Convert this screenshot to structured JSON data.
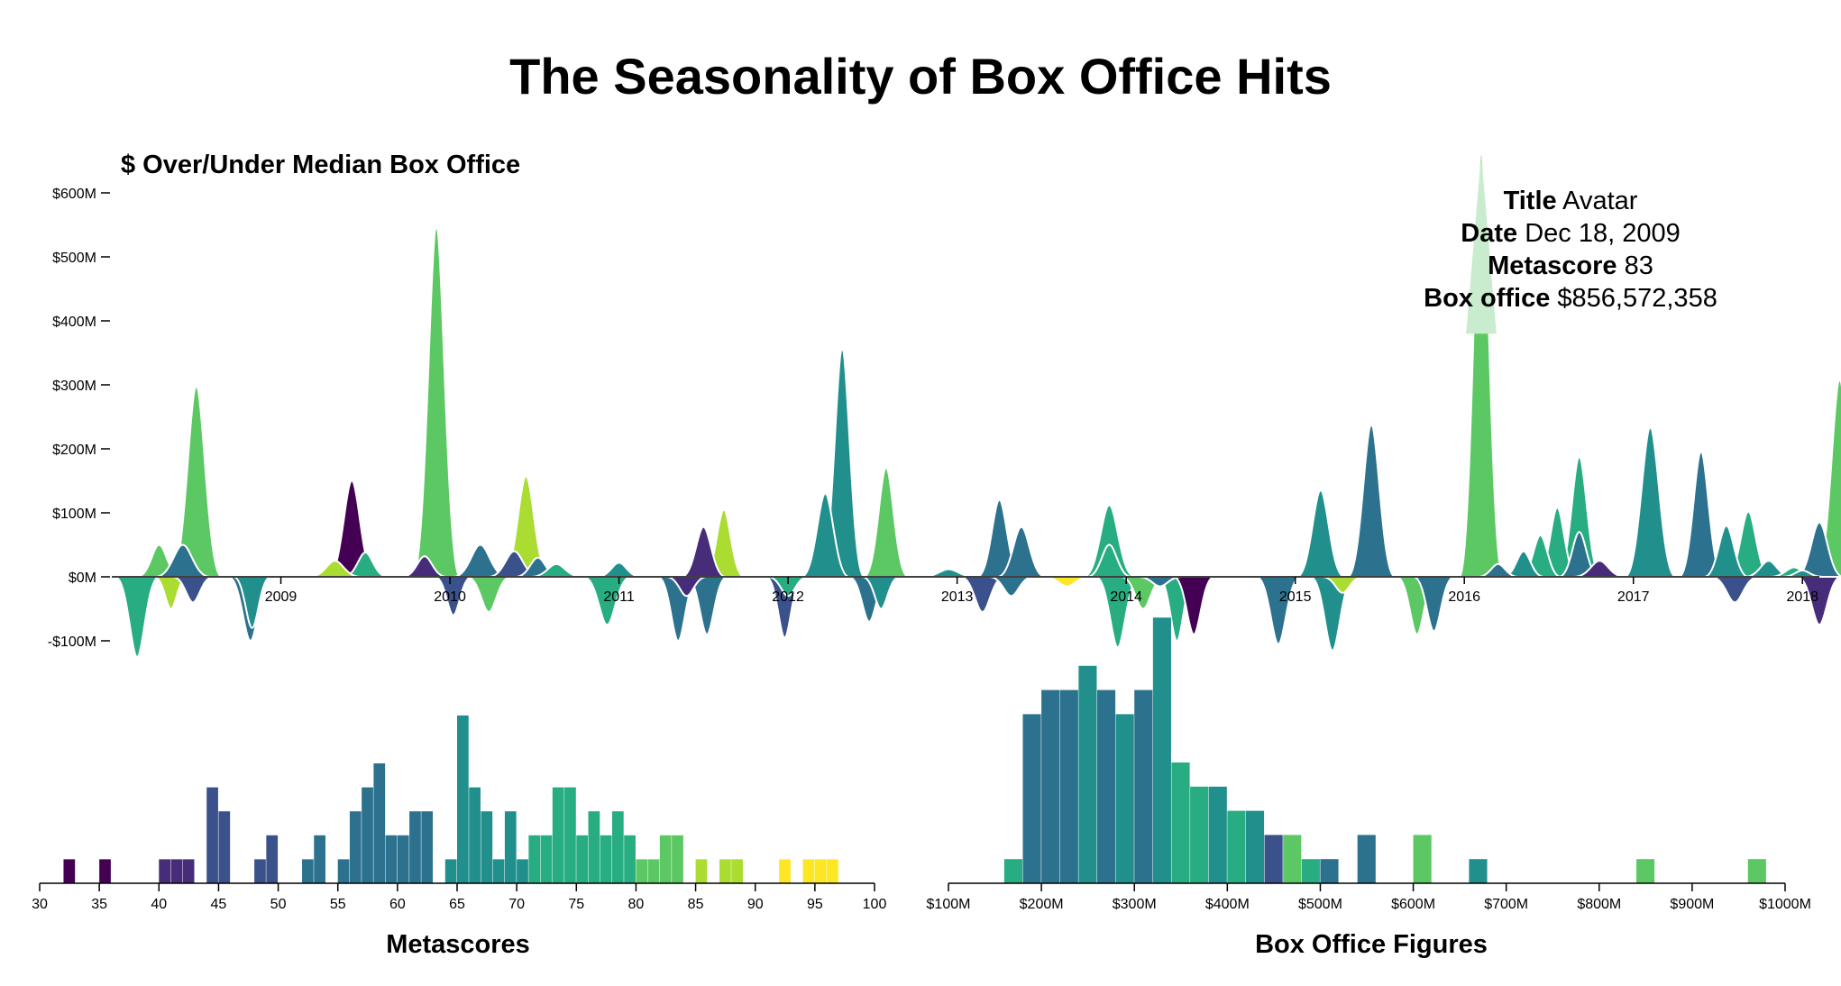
{
  "colors": {
    "palette": [
      "#440154",
      "#472c7a",
      "#3b518b",
      "#2c718e",
      "#21908d",
      "#27ad81",
      "#5cc863",
      "#aadc32",
      "#fde725"
    ],
    "tooltip_band": "#c8eccd",
    "axis": "#000000"
  },
  "chart_data": [
    {
      "type": "area",
      "title": "The Seasonality of Box Office Hits",
      "subtitle": "$ Over/Under Median Box Office",
      "ylim": [
        -100,
        600
      ],
      "y_ticks": [
        {
          "v": 600,
          "label": "$600M"
        },
        {
          "v": 500,
          "label": "$500M"
        },
        {
          "v": 400,
          "label": "$400M"
        },
        {
          "v": 300,
          "label": "$300M"
        },
        {
          "v": 200,
          "label": "$200M"
        },
        {
          "v": 100,
          "label": "$100M"
        },
        {
          "v": 0,
          "label": "$0M"
        },
        {
          "v": -100,
          "label": "-$100M"
        }
      ],
      "x_ticks": [
        {
          "v": 2009,
          "label": "2009"
        },
        {
          "v": 2010,
          "label": "2010"
        },
        {
          "v": 2011,
          "label": "2011"
        },
        {
          "v": 2012,
          "label": "2012"
        },
        {
          "v": 2013,
          "label": "2013"
        },
        {
          "v": 2014,
          "label": "2014"
        },
        {
          "v": 2015,
          "label": "2015"
        },
        {
          "v": 2016,
          "label": "2016"
        },
        {
          "v": 2017,
          "label": "2017"
        },
        {
          "v": 2018,
          "label": "2018"
        }
      ],
      "xlim": [
        2008.0,
        2018.1
      ],
      "peaks": [
        {
          "t": 2008.15,
          "v": -125,
          "w": 0.13,
          "c": 5
        },
        {
          "t": 2008.28,
          "v": 50,
          "w": 0.13,
          "c": 6
        },
        {
          "t": 2008.35,
          "v": -50,
          "w": 0.1,
          "c": 7
        },
        {
          "t": 2008.42,
          "v": 50,
          "w": 0.16,
          "c": 3
        },
        {
          "t": 2008.48,
          "v": -40,
          "w": 0.12,
          "c": 2
        },
        {
          "t": 2008.5,
          "v": 297,
          "w": 0.15,
          "c": 6
        },
        {
          "t": 2008.82,
          "v": -100,
          "w": 0.13,
          "c": 3
        },
        {
          "t": 2008.83,
          "v": -80,
          "w": 0.11,
          "c": 4
        },
        {
          "t": 2009.32,
          "v": 25,
          "w": 0.15,
          "c": 7
        },
        {
          "t": 2009.42,
          "v": 150,
          "w": 0.14,
          "c": 0
        },
        {
          "t": 2009.5,
          "v": 38,
          "w": 0.13,
          "c": 5
        },
        {
          "t": 2009.92,
          "v": 545,
          "w": 0.14,
          "c": 6
        },
        {
          "t": 2009.85,
          "v": 32,
          "w": 0.13,
          "c": 1
        },
        {
          "t": 2010.02,
          "v": -60,
          "w": 0.11,
          "c": 2
        },
        {
          "t": 2010.18,
          "v": 50,
          "w": 0.16,
          "c": 3
        },
        {
          "t": 2010.23,
          "v": -55,
          "w": 0.13,
          "c": 6
        },
        {
          "t": 2010.38,
          "v": 40,
          "w": 0.15,
          "c": 2
        },
        {
          "t": 2010.45,
          "v": 157,
          "w": 0.14,
          "c": 7
        },
        {
          "t": 2010.52,
          "v": 30,
          "w": 0.13,
          "c": 3
        },
        {
          "t": 2010.63,
          "v": 20,
          "w": 0.15,
          "c": 5
        },
        {
          "t": 2010.93,
          "v": -75,
          "w": 0.14,
          "c": 5
        },
        {
          "t": 2011.0,
          "v": 22,
          "w": 0.13,
          "c": 4
        },
        {
          "t": 2011.35,
          "v": -100,
          "w": 0.12,
          "c": 3
        },
        {
          "t": 2011.4,
          "v": -30,
          "w": 0.12,
          "c": 1
        },
        {
          "t": 2011.5,
          "v": 78,
          "w": 0.13,
          "c": 1
        },
        {
          "t": 2011.52,
          "v": -90,
          "w": 0.12,
          "c": 3
        },
        {
          "t": 2011.62,
          "v": 105,
          "w": 0.12,
          "c": 7
        },
        {
          "t": 2011.98,
          "v": -95,
          "w": 0.11,
          "c": 2
        },
        {
          "t": 2012.0,
          "v": -30,
          "w": 0.12,
          "c": 5
        },
        {
          "t": 2012.22,
          "v": 130,
          "w": 0.14,
          "c": 4
        },
        {
          "t": 2012.32,
          "v": 355,
          "w": 0.13,
          "c": 4
        },
        {
          "t": 2012.48,
          "v": -70,
          "w": 0.12,
          "c": 3
        },
        {
          "t": 2012.55,
          "v": -50,
          "w": 0.11,
          "c": 4
        },
        {
          "t": 2012.58,
          "v": 170,
          "w": 0.13,
          "c": 6
        },
        {
          "t": 2012.95,
          "v": 12,
          "w": 0.16,
          "c": 4
        },
        {
          "t": 2013.15,
          "v": -55,
          "w": 0.13,
          "c": 2
        },
        {
          "t": 2013.25,
          "v": 120,
          "w": 0.13,
          "c": 3
        },
        {
          "t": 2013.38,
          "v": 78,
          "w": 0.14,
          "c": 3
        },
        {
          "t": 2013.32,
          "v": -30,
          "w": 0.13,
          "c": 3
        },
        {
          "t": 2013.65,
          "v": -15,
          "w": 0.14,
          "c": 8
        },
        {
          "t": 2013.9,
          "v": 112,
          "w": 0.15,
          "c": 5
        },
        {
          "t": 2013.95,
          "v": -110,
          "w": 0.13,
          "c": 5
        },
        {
          "t": 2013.9,
          "v": 50,
          "w": 0.13,
          "c": 5
        },
        {
          "t": 2014.1,
          "v": -50,
          "w": 0.13,
          "c": 6
        },
        {
          "t": 2014.3,
          "v": -100,
          "w": 0.11,
          "c": 5
        },
        {
          "t": 2014.4,
          "v": -90,
          "w": 0.12,
          "c": 0
        },
        {
          "t": 2014.2,
          "v": -15,
          "w": 0.13,
          "c": 3
        },
        {
          "t": 2014.9,
          "v": -105,
          "w": 0.13,
          "c": 3
        },
        {
          "t": 2015.15,
          "v": 135,
          "w": 0.14,
          "c": 4
        },
        {
          "t": 2015.22,
          "v": -115,
          "w": 0.13,
          "c": 4
        },
        {
          "t": 2015.28,
          "v": -25,
          "w": 0.12,
          "c": 7
        },
        {
          "t": 2015.45,
          "v": 237,
          "w": 0.14,
          "c": 3
        },
        {
          "t": 2015.72,
          "v": -90,
          "w": 0.12,
          "c": 6
        },
        {
          "t": 2015.82,
          "v": -85,
          "w": 0.12,
          "c": 3
        },
        {
          "t": 2016.1,
          "v": 660,
          "w": 0.13,
          "c": 6
        },
        {
          "t": 2016.2,
          "v": 20,
          "w": 0.12,
          "c": 3
        },
        {
          "t": 2016.35,
          "v": 40,
          "w": 0.12,
          "c": 4
        },
        {
          "t": 2016.45,
          "v": 65,
          "w": 0.12,
          "c": 5
        },
        {
          "t": 2016.55,
          "v": 108,
          "w": 0.12,
          "c": 5
        },
        {
          "t": 2016.68,
          "v": 187,
          "w": 0.13,
          "c": 5
        },
        {
          "t": 2016.8,
          "v": 25,
          "w": 0.15,
          "c": 1
        },
        {
          "t": 2016.68,
          "v": 70,
          "w": 0.12,
          "c": 3
        },
        {
          "t": 2017.1,
          "v": 233,
          "w": 0.15,
          "c": 4
        },
        {
          "t": 2017.4,
          "v": 195,
          "w": 0.13,
          "c": 3
        },
        {
          "t": 2017.55,
          "v": 80,
          "w": 0.13,
          "c": 4
        },
        {
          "t": 2017.68,
          "v": 102,
          "w": 0.13,
          "c": 5
        },
        {
          "t": 2017.6,
          "v": -40,
          "w": 0.14,
          "c": 2
        },
        {
          "t": 2017.8,
          "v": 25,
          "w": 0.14,
          "c": 4
        },
        {
          "t": 2017.95,
          "v": 15,
          "w": 0.14,
          "c": 5
        },
        {
          "t": 2018.1,
          "v": -75,
          "w": 0.13,
          "c": 1
        },
        {
          "t": 2018.22,
          "v": 307,
          "w": 0.14,
          "c": 6
        },
        {
          "t": 2018.1,
          "v": 85,
          "w": 0.14,
          "c": 3
        },
        {
          "t": 2018.0,
          "v": 10,
          "w": 0.12,
          "c": 4
        }
      ]
    },
    {
      "type": "bar",
      "title": "Metascores",
      "xlim": [
        30,
        100
      ],
      "x_ticks": [
        30,
        35,
        40,
        45,
        50,
        55,
        60,
        65,
        70,
        75,
        80,
        85,
        90,
        95,
        100
      ],
      "ylim": [
        0,
        8
      ],
      "bins": [
        {
          "x": 32,
          "v": 1,
          "c": 0
        },
        {
          "x": 35,
          "v": 1,
          "c": 0
        },
        {
          "x": 40,
          "v": 1,
          "c": 1
        },
        {
          "x": 41,
          "v": 1,
          "c": 1
        },
        {
          "x": 42,
          "v": 1,
          "c": 1
        },
        {
          "x": 44,
          "v": 4,
          "c": 2
        },
        {
          "x": 45,
          "v": 3,
          "c": 2
        },
        {
          "x": 48,
          "v": 1,
          "c": 2
        },
        {
          "x": 49,
          "v": 2,
          "c": 2
        },
        {
          "x": 52,
          "v": 1,
          "c": 3
        },
        {
          "x": 53,
          "v": 2,
          "c": 3
        },
        {
          "x": 55,
          "v": 1,
          "c": 3
        },
        {
          "x": 56,
          "v": 3,
          "c": 3
        },
        {
          "x": 57,
          "v": 4,
          "c": 3
        },
        {
          "x": 58,
          "v": 5,
          "c": 3
        },
        {
          "x": 59,
          "v": 2,
          "c": 3
        },
        {
          "x": 60,
          "v": 2,
          "c": 3
        },
        {
          "x": 61,
          "v": 3,
          "c": 3
        },
        {
          "x": 62,
          "v": 3,
          "c": 3
        },
        {
          "x": 64,
          "v": 1,
          "c": 4
        },
        {
          "x": 65,
          "v": 7,
          "c": 4
        },
        {
          "x": 66,
          "v": 4,
          "c": 4
        },
        {
          "x": 67,
          "v": 3,
          "c": 4
        },
        {
          "x": 68,
          "v": 1,
          "c": 4
        },
        {
          "x": 69,
          "v": 3,
          "c": 4
        },
        {
          "x": 70,
          "v": 1,
          "c": 4
        },
        {
          "x": 71,
          "v": 2,
          "c": 5
        },
        {
          "x": 72,
          "v": 2,
          "c": 5
        },
        {
          "x": 73,
          "v": 4,
          "c": 5
        },
        {
          "x": 74,
          "v": 4,
          "c": 5
        },
        {
          "x": 75,
          "v": 2,
          "c": 5
        },
        {
          "x": 76,
          "v": 3,
          "c": 5
        },
        {
          "x": 77,
          "v": 2,
          "c": 5
        },
        {
          "x": 78,
          "v": 3,
          "c": 5
        },
        {
          "x": 79,
          "v": 2,
          "c": 5
        },
        {
          "x": 80,
          "v": 1,
          "c": 6
        },
        {
          "x": 81,
          "v": 1,
          "c": 6
        },
        {
          "x": 82,
          "v": 2,
          "c": 6
        },
        {
          "x": 83,
          "v": 2,
          "c": 6
        },
        {
          "x": 85,
          "v": 1,
          "c": 7
        },
        {
          "x": 87,
          "v": 1,
          "c": 7
        },
        {
          "x": 88,
          "v": 1,
          "c": 7
        },
        {
          "x": 92,
          "v": 1,
          "c": 8
        },
        {
          "x": 94,
          "v": 1,
          "c": 8
        },
        {
          "x": 95,
          "v": 1,
          "c": 8
        },
        {
          "x": 96,
          "v": 1,
          "c": 8
        }
      ]
    },
    {
      "type": "bar",
      "title": "Box Office Figures",
      "xlim": [
        100,
        1000
      ],
      "x_ticks": [
        {
          "v": 100,
          "label": "$100M"
        },
        {
          "v": 200,
          "label": "$200M"
        },
        {
          "v": 300,
          "label": "$300M"
        },
        {
          "v": 400,
          "label": "$400M"
        },
        {
          "v": 500,
          "label": "$500M"
        },
        {
          "v": 600,
          "label": "$600M"
        },
        {
          "v": 700,
          "label": "$700M"
        },
        {
          "v": 800,
          "label": "$800M"
        },
        {
          "v": 900,
          "label": "$900M"
        },
        {
          "v": 1000,
          "label": "$1000M"
        }
      ],
      "bin_width": 20,
      "ylim": [
        0,
        12
      ],
      "bins": [
        {
          "x": 160,
          "v": 1,
          "c": 5
        },
        {
          "x": 180,
          "v": 7,
          "c": 3
        },
        {
          "x": 200,
          "v": 8,
          "c": 3
        },
        {
          "x": 220,
          "v": 8,
          "c": 3
        },
        {
          "x": 240,
          "v": 9,
          "c": 4
        },
        {
          "x": 260,
          "v": 8,
          "c": 3
        },
        {
          "x": 280,
          "v": 7,
          "c": 4
        },
        {
          "x": 300,
          "v": 8,
          "c": 3
        },
        {
          "x": 320,
          "v": 11,
          "c": 4
        },
        {
          "x": 340,
          "v": 5,
          "c": 5
        },
        {
          "x": 360,
          "v": 4,
          "c": 5
        },
        {
          "x": 380,
          "v": 4,
          "c": 4
        },
        {
          "x": 400,
          "v": 3,
          "c": 5
        },
        {
          "x": 420,
          "v": 3,
          "c": 4
        },
        {
          "x": 440,
          "v": 2,
          "c": 2
        },
        {
          "x": 460,
          "v": 2,
          "c": 6
        },
        {
          "x": 480,
          "v": 1,
          "c": 5
        },
        {
          "x": 500,
          "v": 1,
          "c": 3
        },
        {
          "x": 540,
          "v": 2,
          "c": 3
        },
        {
          "x": 600,
          "v": 2,
          "c": 6
        },
        {
          "x": 660,
          "v": 1,
          "c": 4
        },
        {
          "x": 840,
          "v": 1,
          "c": 6
        },
        {
          "x": 960,
          "v": 1,
          "c": 6
        }
      ]
    }
  ],
  "tooltip": {
    "title_label": "Title",
    "title_value": "Avatar",
    "date_label": "Date",
    "date_value": "Dec 18, 2009",
    "metascore_label": "Metascore",
    "metascore_value": "83",
    "boxoffice_label": "Box office",
    "boxoffice_value": "$856,572,358"
  }
}
